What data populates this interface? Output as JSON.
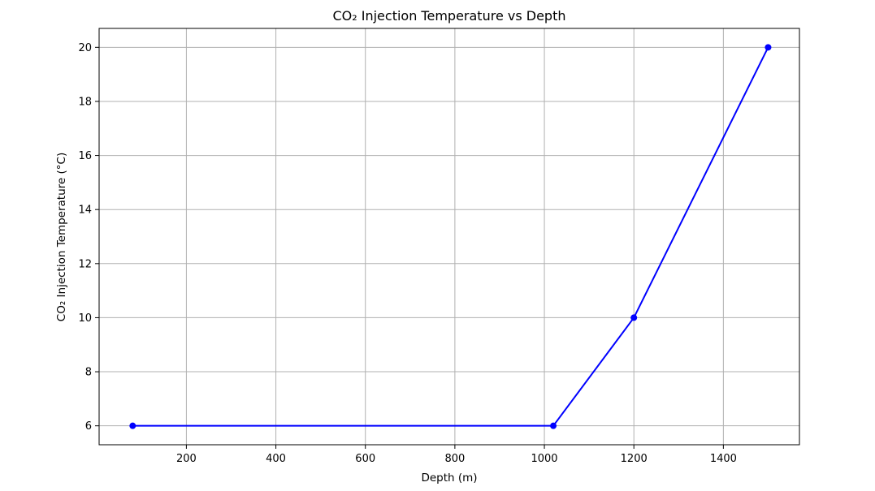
{
  "chart_data": {
    "type": "line",
    "title": "CO₂ Injection Temperature vs Depth",
    "xlabel": "Depth (m)",
    "ylabel": "CO₂ Injection Temperature (°C)",
    "xlim": [
      5,
      1570
    ],
    "ylim": [
      5.3,
      20.7
    ],
    "xticks": [
      200,
      400,
      600,
      800,
      1000,
      1200,
      1400
    ],
    "yticks": [
      6,
      8,
      10,
      12,
      14,
      16,
      18,
      20
    ],
    "grid": true,
    "series": [
      {
        "x": [
          80,
          1020,
          1200,
          1500
        ],
        "y": [
          6,
          6,
          10,
          20
        ],
        "color": "#0000ff",
        "marker": "circle"
      }
    ]
  }
}
